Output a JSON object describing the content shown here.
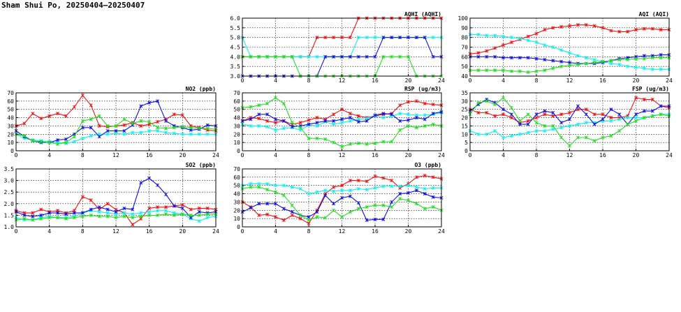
{
  "page": {
    "title": "Sham Shui Po, 20250404–20250407"
  },
  "colors": {
    "red": "#ee1111",
    "cyan": "#11eeee",
    "blue": "#1111dd",
    "green": "#22dd22",
    "grid": "#000000"
  },
  "chart_data": [
    {
      "id": "aqhi",
      "type": "line",
      "title": "AQHI (AQHI)",
      "xlim": [
        0,
        24
      ],
      "xticks": [
        0,
        4,
        8,
        12,
        16,
        20,
        24
      ],
      "ylim": [
        3.0,
        6.0
      ],
      "yticks": [
        "3.0",
        "3.5",
        "4.0",
        "4.5",
        "5.0",
        "5.5",
        "6.0"
      ],
      "grid": true,
      "series": [
        {
          "color": "red",
          "values": [
            4,
            4,
            4,
            4,
            4,
            4,
            4,
            4,
            4,
            5,
            5,
            5,
            5,
            5,
            6,
            6,
            6,
            6,
            6,
            6,
            6,
            6,
            6,
            6,
            6
          ]
        },
        {
          "color": "cyan",
          "values": [
            5,
            4,
            4,
            4,
            4,
            4,
            4,
            4,
            4,
            4,
            4,
            4,
            4,
            4,
            5,
            5,
            5,
            5,
            5,
            5,
            5,
            5,
            5,
            5,
            5
          ]
        },
        {
          "color": "blue",
          "values": [
            3,
            3,
            3,
            3,
            3,
            3,
            3,
            3,
            3,
            3,
            4,
            4,
            4,
            4,
            4,
            4,
            4,
            5,
            5,
            5,
            5,
            5,
            5,
            4,
            4
          ]
        },
        {
          "color": "green",
          "values": [
            4,
            4,
            4,
            4,
            4,
            4,
            4,
            3,
            3,
            3,
            3,
            3,
            3,
            3,
            3,
            3,
            3,
            4,
            4,
            4,
            4,
            3,
            3,
            3,
            3
          ]
        }
      ]
    },
    {
      "id": "aqi",
      "type": "line",
      "title": "AQI (AQI)",
      "xlim": [
        0,
        24
      ],
      "xticks": [
        0,
        4,
        8,
        12,
        16,
        20,
        24
      ],
      "ylim": [
        40,
        100
      ],
      "yticks": [
        "40",
        "50",
        "60",
        "70",
        "80",
        "90",
        "100"
      ],
      "grid": true,
      "series": [
        {
          "color": "red",
          "values": [
            63,
            64,
            66,
            69,
            72,
            75,
            78,
            81,
            84,
            88,
            90,
            91,
            92,
            93,
            93,
            92,
            90,
            87,
            86,
            86,
            88,
            89,
            89,
            88,
            88
          ]
        },
        {
          "color": "cyan",
          "values": [
            83,
            83,
            82,
            82,
            81,
            80,
            79,
            77,
            75,
            72,
            70,
            67,
            64,
            61,
            59,
            57,
            55,
            53,
            52,
            50,
            49,
            48,
            47,
            47,
            47
          ]
        },
        {
          "color": "blue",
          "values": [
            60,
            60,
            60,
            60,
            59,
            59,
            59,
            59,
            58,
            57,
            56,
            55,
            54,
            53,
            53,
            53,
            54,
            56,
            58,
            59,
            60,
            61,
            61,
            62,
            62
          ]
        },
        {
          "color": "green",
          "values": [
            46,
            46,
            46,
            46,
            46,
            45,
            45,
            44,
            45,
            46,
            48,
            50,
            51,
            52,
            53,
            54,
            55,
            56,
            57,
            57,
            58,
            58,
            59,
            59,
            59
          ]
        }
      ]
    },
    {
      "id": "no2",
      "type": "line",
      "title": "NO2 (ppb)",
      "xlim": [
        0,
        24
      ],
      "xticks": [
        0,
        4,
        8,
        12,
        16,
        20,
        24
      ],
      "ylim": [
        0,
        70
      ],
      "yticks": [
        "0",
        "10",
        "20",
        "30",
        "40",
        "50",
        "60",
        "70"
      ],
      "grid": true,
      "series": [
        {
          "color": "red",
          "values": [
            30,
            33,
            45,
            39,
            42,
            45,
            42,
            53,
            67,
            55,
            30,
            29,
            30,
            31,
            34,
            30,
            32,
            35,
            38,
            44,
            43,
            30,
            28,
            25,
            24
          ]
        },
        {
          "color": "cyan",
          "values": [
            20,
            15,
            13,
            12,
            11,
            10,
            9,
            11,
            15,
            18,
            20,
            20,
            21,
            20,
            22,
            22,
            24,
            24,
            22,
            21,
            20,
            20,
            20,
            20,
            20
          ]
        },
        {
          "color": "blue",
          "values": [
            24,
            17,
            12,
            10,
            10,
            13,
            14,
            20,
            28,
            28,
            17,
            24,
            24,
            24,
            31,
            54,
            58,
            60,
            36,
            30,
            28,
            25,
            26,
            31,
            30
          ]
        },
        {
          "color": "green",
          "values": [
            20,
            18,
            12,
            11,
            10,
            8,
            10,
            17,
            36,
            38,
            42,
            30,
            30,
            38,
            33,
            36,
            35,
            28,
            27,
            28,
            29,
            28,
            27,
            27,
            26
          ]
        }
      ]
    },
    {
      "id": "rsp",
      "type": "line",
      "title": "RSP (ug/m3)",
      "xlim": [
        0,
        24
      ],
      "xticks": [
        0,
        4,
        8,
        12,
        16,
        20,
        24
      ],
      "ylim": [
        0,
        70
      ],
      "yticks": [
        "0",
        "10",
        "20",
        "30",
        "40",
        "50",
        "60",
        "70"
      ],
      "grid": true,
      "series": [
        {
          "color": "red",
          "values": [
            36,
            40,
            39,
            36,
            34,
            36,
            32,
            34,
            37,
            40,
            38,
            44,
            50,
            45,
            42,
            40,
            42,
            44,
            45,
            55,
            59,
            60,
            57,
            56,
            55
          ]
        },
        {
          "color": "cyan",
          "values": [
            32,
            30,
            30,
            29,
            25,
            27,
            28,
            25,
            31,
            30,
            35,
            32,
            34,
            36,
            38,
            39,
            42,
            40,
            42,
            45,
            44,
            43,
            43,
            44,
            46
          ]
        },
        {
          "color": "blue",
          "values": [
            36,
            38,
            44,
            44,
            38,
            36,
            29,
            30,
            32,
            34,
            36,
            36,
            38,
            40,
            35,
            36,
            43,
            45,
            44,
            36,
            37,
            40,
            38,
            45,
            47
          ]
        },
        {
          "color": "green",
          "values": [
            52,
            53,
            55,
            57,
            64,
            57,
            34,
            28,
            15,
            15,
            14,
            10,
            5,
            8,
            9,
            8,
            9,
            11,
            11,
            25,
            30,
            28,
            30,
            32,
            30
          ]
        }
      ]
    },
    {
      "id": "fsp",
      "type": "line",
      "title": "FSP (ug/m3)",
      "xlim": [
        0,
        24
      ],
      "xticks": [
        0,
        4,
        8,
        12,
        16,
        20,
        24
      ],
      "ylim": [
        0,
        35
      ],
      "yticks": [
        "0",
        "5",
        "10",
        "15",
        "20",
        "25",
        "30",
        "35"
      ],
      "grid": true,
      "series": [
        {
          "color": "red",
          "values": [
            25,
            23,
            23,
            21,
            22,
            20,
            17,
            18,
            20,
            22,
            21,
            22,
            23,
            25,
            25,
            22,
            22,
            20,
            20,
            21,
            32,
            31,
            31,
            27,
            26
          ]
        },
        {
          "color": "cyan",
          "values": [
            12,
            10,
            10,
            12,
            8,
            9,
            10,
            11,
            12,
            12,
            13,
            14,
            15,
            16,
            17,
            17,
            18,
            18,
            19,
            20,
            20,
            20,
            21,
            22,
            22
          ]
        },
        {
          "color": "blue",
          "values": [
            24,
            28,
            31,
            29,
            25,
            22,
            16,
            16,
            22,
            24,
            23,
            17,
            19,
            27,
            22,
            16,
            19,
            25,
            22,
            16,
            22,
            24,
            24,
            27,
            27
          ]
        },
        {
          "color": "green",
          "values": [
            22,
            29,
            30,
            28,
            32,
            26,
            18,
            22,
            17,
            15,
            15,
            8,
            3,
            8,
            8,
            6,
            8,
            9,
            12,
            16,
            18,
            20,
            21,
            22,
            21
          ]
        }
      ]
    },
    {
      "id": "so2",
      "type": "line",
      "title": "SO2 (ppb)",
      "xlim": [
        0,
        24
      ],
      "xticks": [
        0,
        4,
        8,
        12,
        16,
        20,
        24
      ],
      "ylim": [
        1.0,
        3.5
      ],
      "yticks": [
        "1.0",
        "1.5",
        "2.0",
        "2.5",
        "3.0",
        "3.5"
      ],
      "grid": true,
      "series": [
        {
          "color": "red",
          "values": [
            1.7,
            1.6,
            1.6,
            1.75,
            1.65,
            1.7,
            1.6,
            1.7,
            2.3,
            2.15,
            1.75,
            2.0,
            1.75,
            1.6,
            1.1,
            1.35,
            1.8,
            1.85,
            1.85,
            1.9,
            1.95,
            1.75,
            1.8,
            1.8,
            1.75
          ]
        },
        {
          "color": "cyan",
          "values": [
            1.4,
            1.3,
            1.3,
            1.4,
            1.45,
            1.4,
            1.4,
            1.45,
            1.6,
            1.7,
            1.65,
            1.6,
            1.55,
            1.6,
            1.55,
            1.6,
            1.65,
            1.7,
            1.7,
            1.6,
            1.55,
            1.35,
            1.25,
            1.4,
            1.45
          ]
        },
        {
          "color": "blue",
          "values": [
            1.65,
            1.5,
            1.45,
            1.5,
            1.6,
            1.6,
            1.55,
            1.6,
            1.6,
            1.75,
            1.85,
            1.75,
            1.65,
            1.8,
            1.75,
            2.9,
            3.1,
            2.8,
            2.4,
            1.9,
            1.8,
            1.4,
            1.65,
            1.6,
            1.65
          ]
        },
        {
          "color": "green",
          "values": [
            1.3,
            1.35,
            1.3,
            1.35,
            1.4,
            1.4,
            1.35,
            1.4,
            1.45,
            1.5,
            1.45,
            1.45,
            1.4,
            1.45,
            1.4,
            1.45,
            1.5,
            1.5,
            1.55,
            1.5,
            1.55,
            1.5,
            1.5,
            1.55,
            1.55
          ]
        }
      ]
    },
    {
      "id": "o3",
      "type": "line",
      "title": "O3 (ppb)",
      "xlim": [
        0,
        24
      ],
      "xticks": [
        0,
        4,
        8,
        12,
        16,
        20,
        24
      ],
      "ylim": [
        0,
        70
      ],
      "yticks": [
        "0",
        "10",
        "20",
        "30",
        "40",
        "50",
        "60",
        "70"
      ],
      "grid": true,
      "series": [
        {
          "color": "red",
          "values": [
            30,
            24,
            14,
            15,
            12,
            8,
            14,
            10,
            4,
            20,
            40,
            48,
            50,
            56,
            56,
            55,
            61,
            59,
            56,
            47,
            52,
            60,
            62,
            60,
            58
          ]
        },
        {
          "color": "cyan",
          "values": [
            50,
            52,
            52,
            52,
            50,
            50,
            48,
            46,
            40,
            42,
            44,
            43,
            44,
            44,
            46,
            45,
            47,
            49,
            49,
            49,
            50,
            48,
            46,
            47,
            47
          ]
        },
        {
          "color": "blue",
          "values": [
            18,
            23,
            28,
            28,
            28,
            22,
            18,
            14,
            12,
            18,
            38,
            28,
            35,
            37,
            29,
            8,
            9,
            9,
            30,
            40,
            41,
            44,
            40,
            36,
            35
          ]
        },
        {
          "color": "green",
          "values": [
            46,
            48,
            48,
            45,
            42,
            38,
            26,
            14,
            8,
            12,
            11,
            20,
            12,
            18,
            22,
            24,
            26,
            26,
            24,
            34,
            32,
            28,
            22,
            24,
            20
          ]
        }
      ]
    }
  ]
}
